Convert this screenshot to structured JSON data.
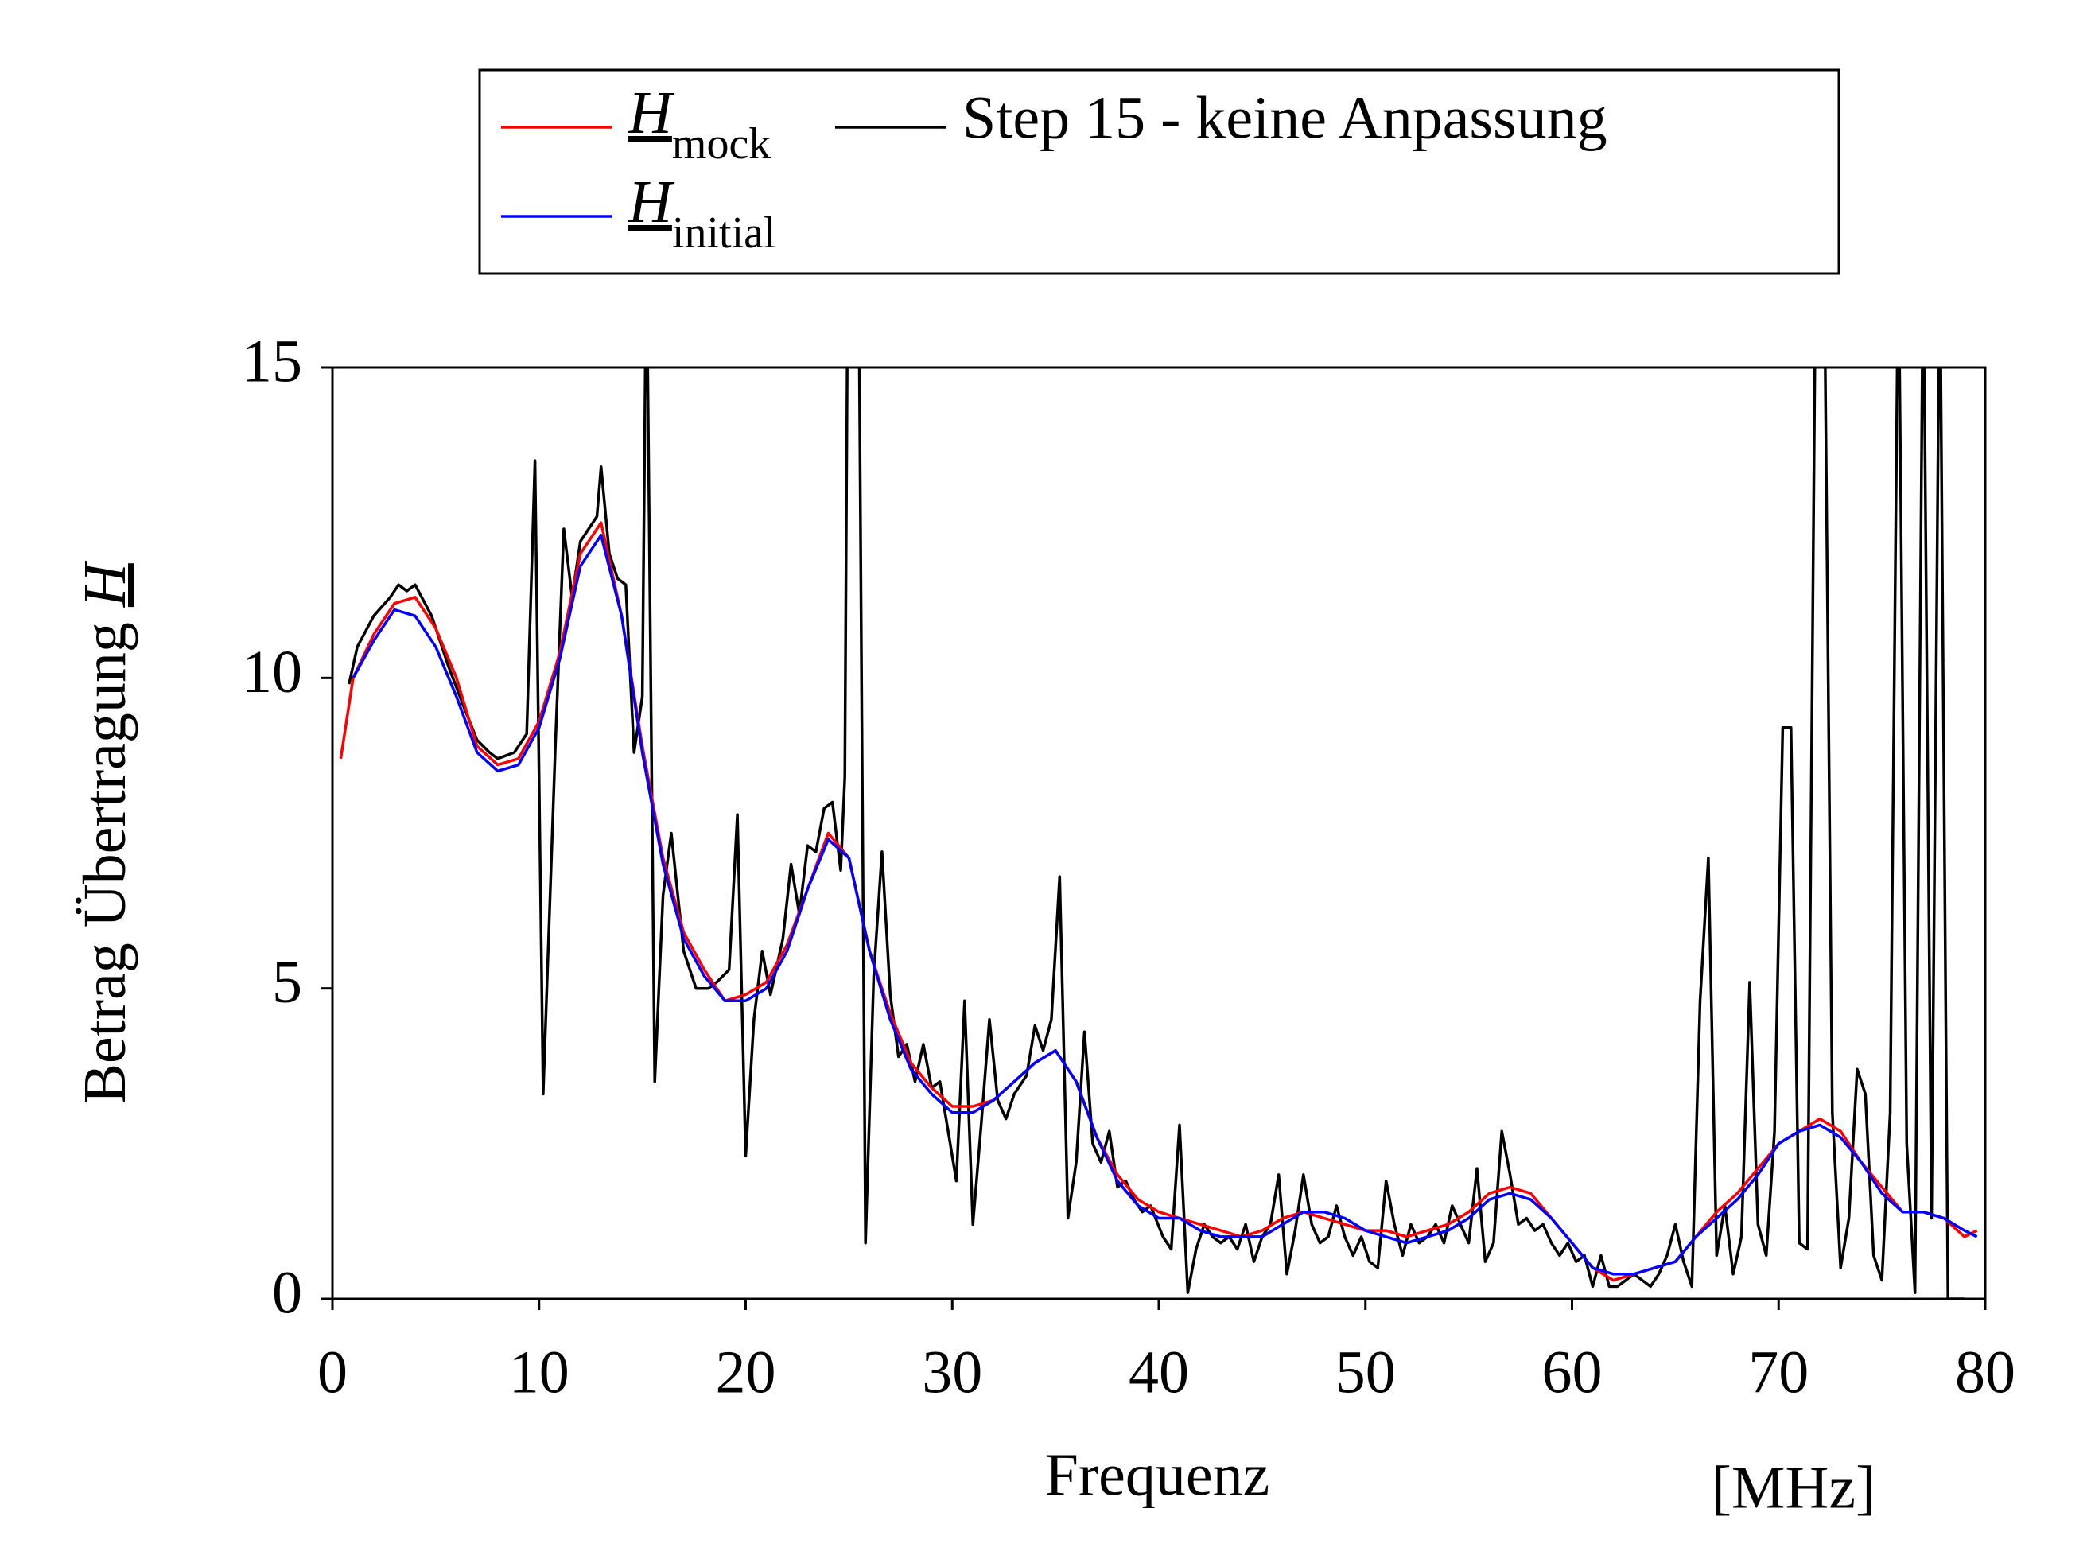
{
  "chart_data": {
    "type": "line",
    "xlabel": "Frequenz",
    "xunit": "[MHz]",
    "ylabel": "Betrag Übertragung",
    "ylabel_symbol": "H",
    "xlim": [
      0,
      80
    ],
    "ylim": [
      0,
      15
    ],
    "xticks": [
      0,
      10,
      20,
      30,
      40,
      50,
      60,
      70,
      80
    ],
    "yticks": [
      0,
      5,
      10,
      15
    ],
    "x": [
      0.4,
      1,
      2,
      3,
      4,
      5,
      6,
      7,
      8,
      9,
      10,
      11,
      12,
      13,
      14,
      15,
      16,
      17,
      18,
      19,
      20,
      21,
      22,
      23,
      24,
      25,
      26,
      27,
      28,
      29,
      30,
      31,
      32,
      33,
      34,
      35,
      36,
      37,
      38,
      39,
      40,
      41,
      42,
      43,
      44,
      45,
      46,
      47,
      48,
      49,
      50,
      51,
      52,
      53,
      54,
      55,
      56,
      57,
      58,
      59,
      60,
      61,
      62,
      63,
      64,
      65,
      66,
      67,
      68,
      69,
      70,
      71,
      72,
      73,
      74,
      75,
      76,
      77,
      78,
      79,
      79.6
    ],
    "series": [
      {
        "name": "Step 15 - keine Anpassung",
        "color": "#000000",
        "x": [
          0.8,
          1.2,
          2,
          2.8,
          3.2,
          3.6,
          4,
          4.8,
          5.6,
          6.4,
          7,
          7.6,
          8,
          8.8,
          9.4,
          9.8,
          10.2,
          10.8,
          11.2,
          11.6,
          12,
          12.8,
          13,
          13.4,
          13.8,
          14.2,
          14.6,
          15,
          15.2,
          15.6,
          16,
          16.4,
          17,
          17.6,
          18.2,
          18.6,
          19.2,
          19.6,
          20,
          20.4,
          20.8,
          21.2,
          21.8,
          22.2,
          22.6,
          23,
          23.4,
          23.8,
          24.2,
          24.6,
          24.8,
          25,
          25.4,
          25.8,
          26.2,
          26.6,
          27,
          27.4,
          27.8,
          28.2,
          28.6,
          29,
          29.4,
          29.8,
          30.2,
          30.6,
          31,
          31.4,
          31.8,
          32.2,
          32.6,
          33,
          33.6,
          34,
          34.4,
          34.8,
          35.2,
          35.6,
          36,
          36.4,
          36.8,
          37.2,
          37.6,
          38,
          38.4,
          38.8,
          39.2,
          39.6,
          40.2,
          40.6,
          41,
          41.4,
          41.8,
          42.2,
          42.6,
          43,
          43.4,
          43.8,
          44.2,
          44.6,
          45,
          45.4,
          45.8,
          46.2,
          46.6,
          47,
          47.4,
          47.8,
          48.2,
          48.6,
          49,
          49.4,
          49.8,
          50.2,
          50.6,
          51,
          51.4,
          51.8,
          52.2,
          52.6,
          53,
          53.4,
          53.8,
          54.2,
          54.6,
          55,
          55.4,
          55.8,
          56.2,
          56.6,
          57,
          57.4,
          57.8,
          58.2,
          58.6,
          59,
          59.4,
          59.8,
          60.2,
          60.6,
          61,
          61.4,
          61.8,
          62.2,
          62.6,
          63,
          63.4,
          63.8,
          64.2,
          64.6,
          65,
          65.4,
          65.8,
          66.2,
          66.6,
          67,
          67.4,
          67.8,
          68.2,
          68.6,
          69,
          69.4,
          69.8,
          70.2,
          70.6,
          71,
          71.4,
          71.8,
          72.2,
          72.6,
          73,
          73.4,
          73.8,
          74.2,
          74.6,
          75,
          75.4,
          75.8,
          76.2,
          76.6,
          77,
          77.4,
          77.8,
          78.2,
          79
        ],
        "values": [
          9.9,
          10.5,
          11.0,
          11.3,
          11.5,
          11.4,
          11.5,
          11.0,
          10.2,
          9.5,
          9.0,
          8.8,
          8.7,
          8.8,
          9.1,
          13.5,
          3.3,
          9.0,
          12.4,
          11.3,
          12.2,
          12.6,
          13.4,
          12.0,
          11.6,
          11.5,
          8.8,
          9.7,
          17,
          3.5,
          6.5,
          7.5,
          5.6,
          5.0,
          5.0,
          5.1,
          5.3,
          7.8,
          2.3,
          4.5,
          5.6,
          4.9,
          5.8,
          7.0,
          6.2,
          7.3,
          7.2,
          7.9,
          8.0,
          6.9,
          8.4,
          20,
          20,
          0.9,
          5.2,
          7.2,
          4.9,
          3.9,
          4.1,
          3.5,
          4.1,
          3.4,
          3.5,
          2.7,
          1.9,
          4.8,
          1.2,
          2.8,
          4.5,
          3.2,
          2.9,
          3.3,
          3.6,
          4.4,
          4.0,
          4.5,
          6.8,
          1.3,
          2.2,
          4.3,
          2.5,
          2.2,
          2.7,
          1.8,
          1.9,
          1.6,
          1.4,
          1.5,
          1.0,
          0.8,
          2.8,
          0.1,
          0.8,
          1.2,
          1.0,
          0.9,
          1.0,
          0.8,
          1.2,
          0.6,
          1.0,
          1.2,
          2.0,
          0.4,
          1.1,
          2.0,
          1.2,
          0.9,
          1.0,
          1.5,
          1.0,
          0.7,
          1.0,
          0.6,
          0.5,
          1.9,
          1.2,
          0.7,
          1.2,
          0.9,
          1.0,
          1.2,
          0.9,
          1.5,
          1.2,
          0.9,
          2.1,
          0.6,
          0.9,
          2.7,
          2.0,
          1.2,
          1.3,
          1.1,
          1.2,
          0.9,
          0.7,
          0.9,
          0.6,
          0.7,
          0.2,
          0.7,
          0.2,
          0.2,
          0.3,
          0.4,
          0.3,
          0.2,
          0.4,
          0.7,
          1.2,
          0.6,
          0.2,
          4.8,
          7.1,
          0.7,
          1.5,
          0.4,
          1.0,
          5.1,
          1.2,
          0.7,
          2.7,
          9.2,
          9.2,
          0.9,
          0.8,
          17,
          17,
          3.0,
          0.5,
          1.3,
          3.7,
          3.3,
          0.7,
          0.3,
          3.0,
          17,
          2.5,
          0.1,
          17,
          1.3,
          17,
          0,
          0
        ]
      },
      {
        "name": "H",
        "subscript": "mock",
        "color": "#ff0000",
        "values": [
          8.7,
          10.0,
          10.7,
          11.2,
          11.3,
          10.8,
          10.0,
          8.9,
          8.6,
          8.7,
          9.3,
          10.4,
          12.0,
          12.5,
          11.0,
          8.9,
          7.1,
          5.9,
          5.3,
          4.8,
          4.9,
          5.1,
          5.7,
          6.6,
          7.5,
          7.1,
          5.6,
          4.6,
          3.8,
          3.4,
          3.1,
          3.1,
          3.2,
          3.5,
          3.8,
          4.0,
          3.5,
          2.6,
          2.0,
          1.6,
          1.4,
          1.3,
          1.2,
          1.1,
          1.0,
          1.1,
          1.3,
          1.4,
          1.3,
          1.2,
          1.1,
          1.1,
          1.0,
          1.1,
          1.2,
          1.4,
          1.7,
          1.8,
          1.7,
          1.3,
          0.9,
          0.5,
          0.3,
          0.4,
          0.5,
          0.6,
          1.0,
          1.4,
          1.7,
          2.1,
          2.5,
          2.7,
          2.9,
          2.7,
          2.2,
          1.8,
          1.4,
          1.4,
          1.3,
          1.0,
          1.1
        ]
      },
      {
        "name": "H",
        "subscript": "initial",
        "color": "#0000ff",
        "values": [
          null,
          10.0,
          10.6,
          11.1,
          11.0,
          10.5,
          9.7,
          8.8,
          8.5,
          8.6,
          9.2,
          10.3,
          11.8,
          12.3,
          11.0,
          8.8,
          7.0,
          5.8,
          5.2,
          4.8,
          4.8,
          5.0,
          5.6,
          6.6,
          7.4,
          7.1,
          5.6,
          4.5,
          3.7,
          3.3,
          3.0,
          3.0,
          3.2,
          3.5,
          3.8,
          4.0,
          3.5,
          2.6,
          1.9,
          1.5,
          1.3,
          1.3,
          1.1,
          1.0,
          1.0,
          1.0,
          1.2,
          1.4,
          1.4,
          1.3,
          1.1,
          1.0,
          0.9,
          1.0,
          1.1,
          1.3,
          1.6,
          1.7,
          1.6,
          1.3,
          0.9,
          0.5,
          0.4,
          0.4,
          0.5,
          0.6,
          1.0,
          1.3,
          1.6,
          2.0,
          2.5,
          2.7,
          2.8,
          2.6,
          2.2,
          1.7,
          1.4,
          1.4,
          1.3,
          1.1,
          1.0
        ]
      }
    ]
  }
}
